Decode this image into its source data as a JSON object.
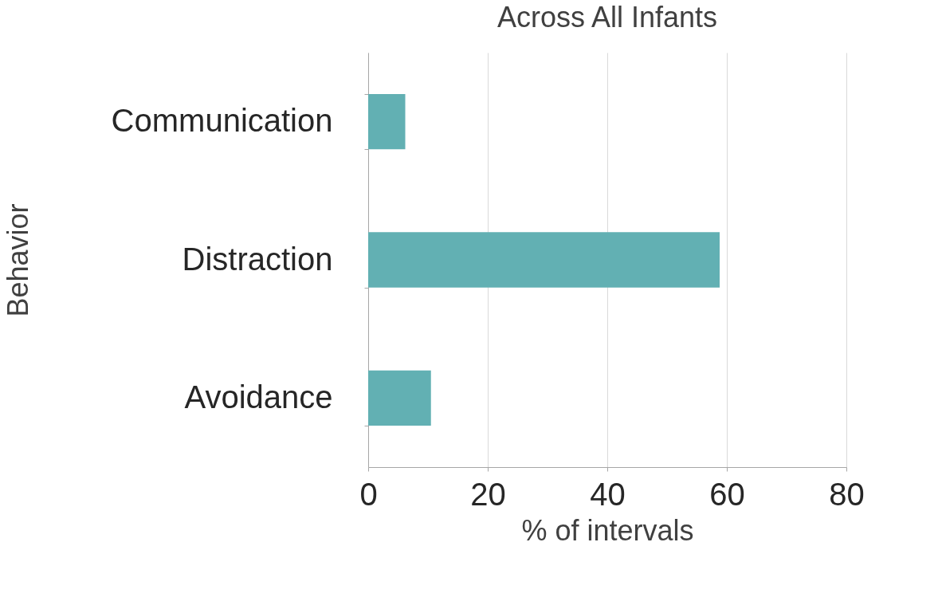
{
  "chart_data": {
    "type": "bar",
    "orientation": "horizontal",
    "title": "Across All Infants",
    "categories": [
      "Communication",
      "Distraction",
      "Avoidance"
    ],
    "values": [
      6.2,
      58.8,
      10.5
    ],
    "color": "#62b0b3",
    "xlim": [
      0,
      80
    ],
    "xticks": [
      0,
      20,
      40,
      60,
      80
    ],
    "grid": "x",
    "xlabel": "% of intervals",
    "ylabel": "Behavior"
  }
}
